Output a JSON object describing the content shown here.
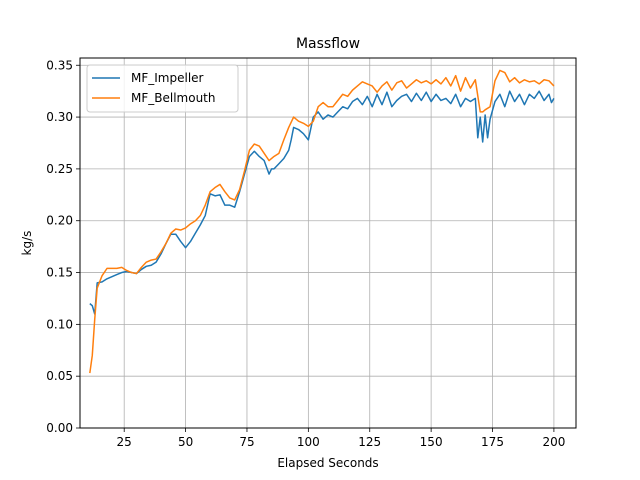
{
  "chart_data": {
    "type": "line",
    "title": "Massflow",
    "xlabel": "Elapsed Seconds",
    "ylabel": "kg/s",
    "xlim": [
      7,
      209
    ],
    "ylim": [
      0.0,
      0.357
    ],
    "xticks": [
      25,
      50,
      75,
      100,
      125,
      150,
      175,
      200
    ],
    "yticks": [
      0.0,
      0.05,
      0.1,
      0.15,
      0.2,
      0.25,
      0.3,
      0.35
    ],
    "grid": true,
    "legend_position": "top-left",
    "colors": {
      "MF_Impeller": "#1f77b4",
      "MF_Bellmouth": "#ff7f0e",
      "grid": "#b0b0b0"
    },
    "series": [
      {
        "name": "MF_Impeller",
        "color": "#1f77b4",
        "x": [
          11,
          12,
          13,
          14,
          16,
          18,
          20,
          22,
          24,
          26,
          28,
          30,
          32,
          34,
          36,
          38,
          40,
          42,
          44,
          46,
          48,
          50,
          52,
          54,
          56,
          58,
          60,
          62,
          64,
          66,
          68,
          70,
          72,
          74,
          76,
          78,
          80,
          82,
          84,
          85,
          86,
          88,
          90,
          92,
          93,
          94,
          96,
          98,
          100,
          102,
          104,
          106,
          108,
          110,
          112,
          114,
          116,
          118,
          120,
          122,
          124,
          126,
          128,
          130,
          132,
          134,
          136,
          138,
          140,
          142,
          144,
          146,
          148,
          150,
          152,
          154,
          156,
          158,
          160,
          162,
          164,
          166,
          168,
          169,
          170,
          171,
          172,
          173,
          174,
          176,
          178,
          180,
          182,
          184,
          186,
          188,
          190,
          192,
          194,
          196,
          198,
          199,
          200
        ],
        "values": [
          0.12,
          0.118,
          0.11,
          0.14,
          0.141,
          0.144,
          0.146,
          0.148,
          0.15,
          0.151,
          0.15,
          0.149,
          0.153,
          0.156,
          0.157,
          0.16,
          0.168,
          0.178,
          0.187,
          0.187,
          0.18,
          0.174,
          0.18,
          0.188,
          0.196,
          0.205,
          0.226,
          0.224,
          0.225,
          0.215,
          0.215,
          0.213,
          0.228,
          0.245,
          0.262,
          0.267,
          0.262,
          0.258,
          0.245,
          0.25,
          0.25,
          0.255,
          0.26,
          0.268,
          0.278,
          0.29,
          0.288,
          0.284,
          0.278,
          0.3,
          0.305,
          0.298,
          0.302,
          0.3,
          0.305,
          0.31,
          0.308,
          0.315,
          0.318,
          0.312,
          0.32,
          0.31,
          0.322,
          0.312,
          0.324,
          0.31,
          0.316,
          0.32,
          0.322,
          0.315,
          0.323,
          0.316,
          0.324,
          0.315,
          0.322,
          0.316,
          0.318,
          0.313,
          0.322,
          0.31,
          0.318,
          0.315,
          0.318,
          0.28,
          0.3,
          0.276,
          0.302,
          0.28,
          0.298,
          0.315,
          0.322,
          0.31,
          0.325,
          0.315,
          0.322,
          0.312,
          0.322,
          0.318,
          0.325,
          0.316,
          0.322,
          0.314,
          0.318
        ]
      },
      {
        "name": "MF_Bellmouth",
        "color": "#ff7f0e",
        "x": [
          11,
          12,
          13,
          14,
          16,
          18,
          20,
          22,
          24,
          26,
          28,
          30,
          32,
          34,
          36,
          38,
          40,
          42,
          44,
          46,
          48,
          50,
          52,
          54,
          56,
          58,
          60,
          62,
          64,
          66,
          68,
          70,
          72,
          74,
          76,
          78,
          80,
          82,
          84,
          86,
          88,
          90,
          92,
          94,
          96,
          98,
          100,
          102,
          104,
          106,
          108,
          110,
          112,
          114,
          116,
          118,
          120,
          122,
          124,
          126,
          128,
          130,
          132,
          134,
          136,
          138,
          140,
          142,
          144,
          146,
          148,
          150,
          152,
          154,
          156,
          158,
          160,
          162,
          164,
          166,
          168,
          170,
          171,
          172,
          174,
          176,
          178,
          180,
          182,
          184,
          186,
          188,
          190,
          192,
          194,
          196,
          198,
          200
        ],
        "values": [
          0.053,
          0.07,
          0.105,
          0.135,
          0.147,
          0.154,
          0.154,
          0.154,
          0.155,
          0.152,
          0.15,
          0.149,
          0.155,
          0.16,
          0.162,
          0.163,
          0.17,
          0.178,
          0.188,
          0.192,
          0.191,
          0.193,
          0.197,
          0.2,
          0.205,
          0.215,
          0.228,
          0.232,
          0.235,
          0.228,
          0.222,
          0.22,
          0.23,
          0.248,
          0.268,
          0.274,
          0.272,
          0.265,
          0.258,
          0.262,
          0.265,
          0.278,
          0.29,
          0.3,
          0.296,
          0.294,
          0.291,
          0.296,
          0.31,
          0.314,
          0.31,
          0.31,
          0.316,
          0.322,
          0.32,
          0.326,
          0.33,
          0.334,
          0.332,
          0.33,
          0.324,
          0.33,
          0.334,
          0.326,
          0.333,
          0.335,
          0.328,
          0.332,
          0.336,
          0.333,
          0.335,
          0.332,
          0.336,
          0.332,
          0.338,
          0.33,
          0.34,
          0.325,
          0.338,
          0.328,
          0.336,
          0.305,
          0.305,
          0.307,
          0.31,
          0.335,
          0.345,
          0.343,
          0.334,
          0.338,
          0.333,
          0.336,
          0.334,
          0.335,
          0.332,
          0.336,
          0.335,
          0.33
        ]
      }
    ]
  }
}
